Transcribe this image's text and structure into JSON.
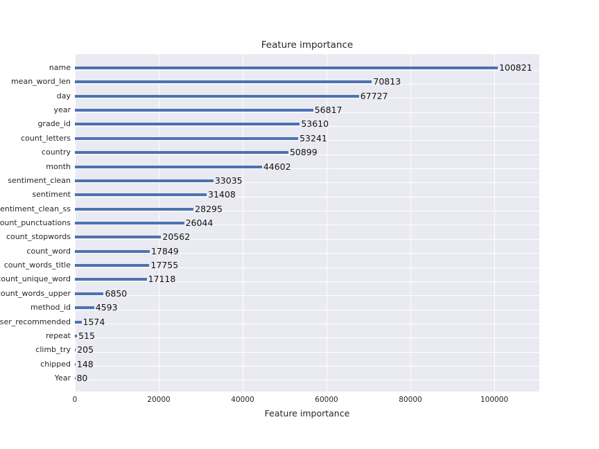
{
  "title": "Feature importance",
  "xlabel": "Feature importance",
  "colors": {
    "figure_bg": "#ffffff",
    "axes_bg": "#eaeaf2",
    "grid": "#ffffff",
    "bar": "#4c72b0",
    "tick_text": "#262626",
    "value_text": "#111111"
  },
  "chart_data": {
    "type": "bar",
    "orientation": "horizontal",
    "title": "Feature importance",
    "xlabel": "Feature importance",
    "ylabel": "",
    "grid": true,
    "legend": false,
    "xlim": [
      0,
      110744
    ],
    "xticks": [
      0,
      20000,
      40000,
      60000,
      80000,
      100000
    ],
    "xtick_labels": [
      "0",
      "20000",
      "40000",
      "60000",
      "80000",
      "100000"
    ],
    "categories": [
      "name",
      "mean_word_len",
      "day",
      "year",
      "grade_id",
      "count_letters",
      "country",
      "month",
      "sentiment_clean",
      "sentiment",
      "sentiment_clean_ss",
      "count_punctuations",
      "count_stopwords",
      "count_word",
      "count_words_title",
      "count_unique_word",
      "count_words_upper",
      "method_id",
      "user_recommended",
      "repeat",
      "climb_try",
      "chipped",
      "Year"
    ],
    "values": [
      100821,
      70813,
      67727,
      56817,
      53610,
      53241,
      50899,
      44602,
      33035,
      31408,
      28295,
      26044,
      20562,
      17849,
      17755,
      17118,
      6850,
      4593,
      1574,
      515,
      205,
      148,
      80
    ],
    "value_labels": [
      "100821",
      "70813",
      "67727",
      "56817",
      "53610",
      "53241",
      "50899",
      "44602",
      "33035",
      "31408",
      "28295",
      "26044",
      "20562",
      "17849",
      "17755",
      "17118",
      "6850",
      "4593",
      "1574",
      "515",
      "205",
      "148",
      "80"
    ]
  }
}
